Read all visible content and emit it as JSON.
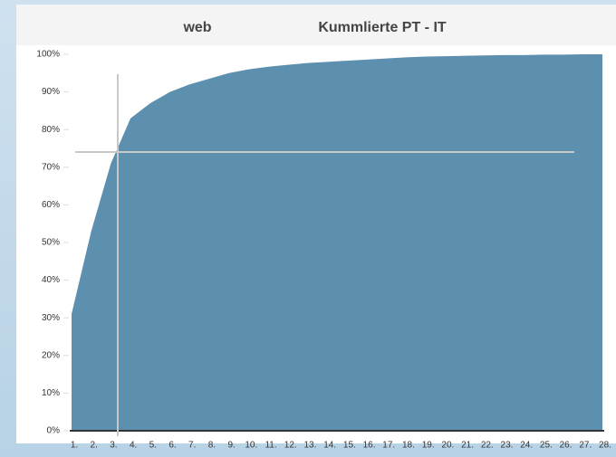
{
  "chart_data": {
    "type": "area",
    "title": "Kummlierte PT - IT",
    "subtitle": "web",
    "categories": [
      "1.",
      "2.",
      "3.",
      "4.",
      "5.",
      "6.",
      "7.",
      "8.",
      "9.",
      "10.",
      "11.",
      "12.",
      "13.",
      "14.",
      "15.",
      "16.",
      "17.",
      "18.",
      "19.",
      "20.",
      "21.",
      "22.",
      "23.",
      "24.",
      "25.",
      "26.",
      "27.",
      "28."
    ],
    "values": [
      31,
      53,
      71,
      83,
      87,
      90,
      92,
      93.5,
      95,
      96,
      96.7,
      97.2,
      97.7,
      98,
      98.3,
      98.6,
      98.9,
      99.2,
      99.4,
      99.5,
      99.6,
      99.7,
      99.8,
      99.8,
      99.9,
      99.9,
      100,
      100
    ],
    "color": "#5d90ae",
    "ylim": [
      0,
      100
    ],
    "yticks": [
      {
        "value": 0,
        "label": "0%"
      },
      {
        "value": 10,
        "label": "10%"
      },
      {
        "value": 20,
        "label": "20%"
      },
      {
        "value": 30,
        "label": "30%"
      },
      {
        "value": 40,
        "label": "40%"
      },
      {
        "value": 50,
        "label": "50%"
      },
      {
        "value": 60,
        "label": "60%"
      },
      {
        "value": 70,
        "label": "70%"
      },
      {
        "value": 80,
        "label": "80%"
      },
      {
        "value": 90,
        "label": "90%"
      },
      {
        "value": 100,
        "label": "100%"
      }
    ]
  }
}
